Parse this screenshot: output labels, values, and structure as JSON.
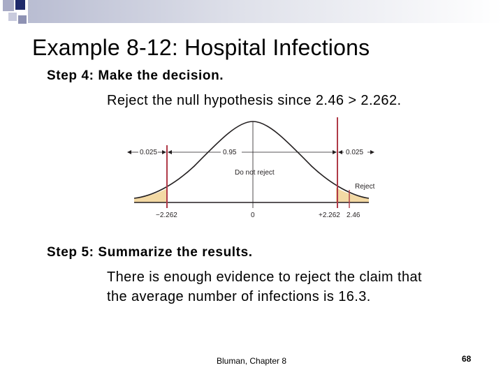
{
  "title": "Example 8-12: Hospital Infections",
  "step4": {
    "heading": "Step 4: Make the decision.",
    "body": "Reject the null hypothesis since 2.46 > 2.262."
  },
  "figure": {
    "left_tail_area": "0.025",
    "center_area": "0.95",
    "right_tail_area": "0.025",
    "do_not_reject_label": "Do not reject",
    "reject_label": "Reject",
    "left_critical": "−2.262",
    "center_value": "0",
    "right_critical": "+2.262",
    "test_value": "2.46",
    "colors": {
      "critical_line": "#b03a48",
      "tail_fill": "#f3d9a4",
      "curve": "#231f20"
    }
  },
  "step5": {
    "heading": "Step 5: Summarize the results.",
    "line1": "There is enough evidence to reject the claim that",
    "line2": "the average number of infections is 16.3."
  },
  "footer": {
    "text": "Bluman, Chapter 8",
    "page": "68"
  }
}
